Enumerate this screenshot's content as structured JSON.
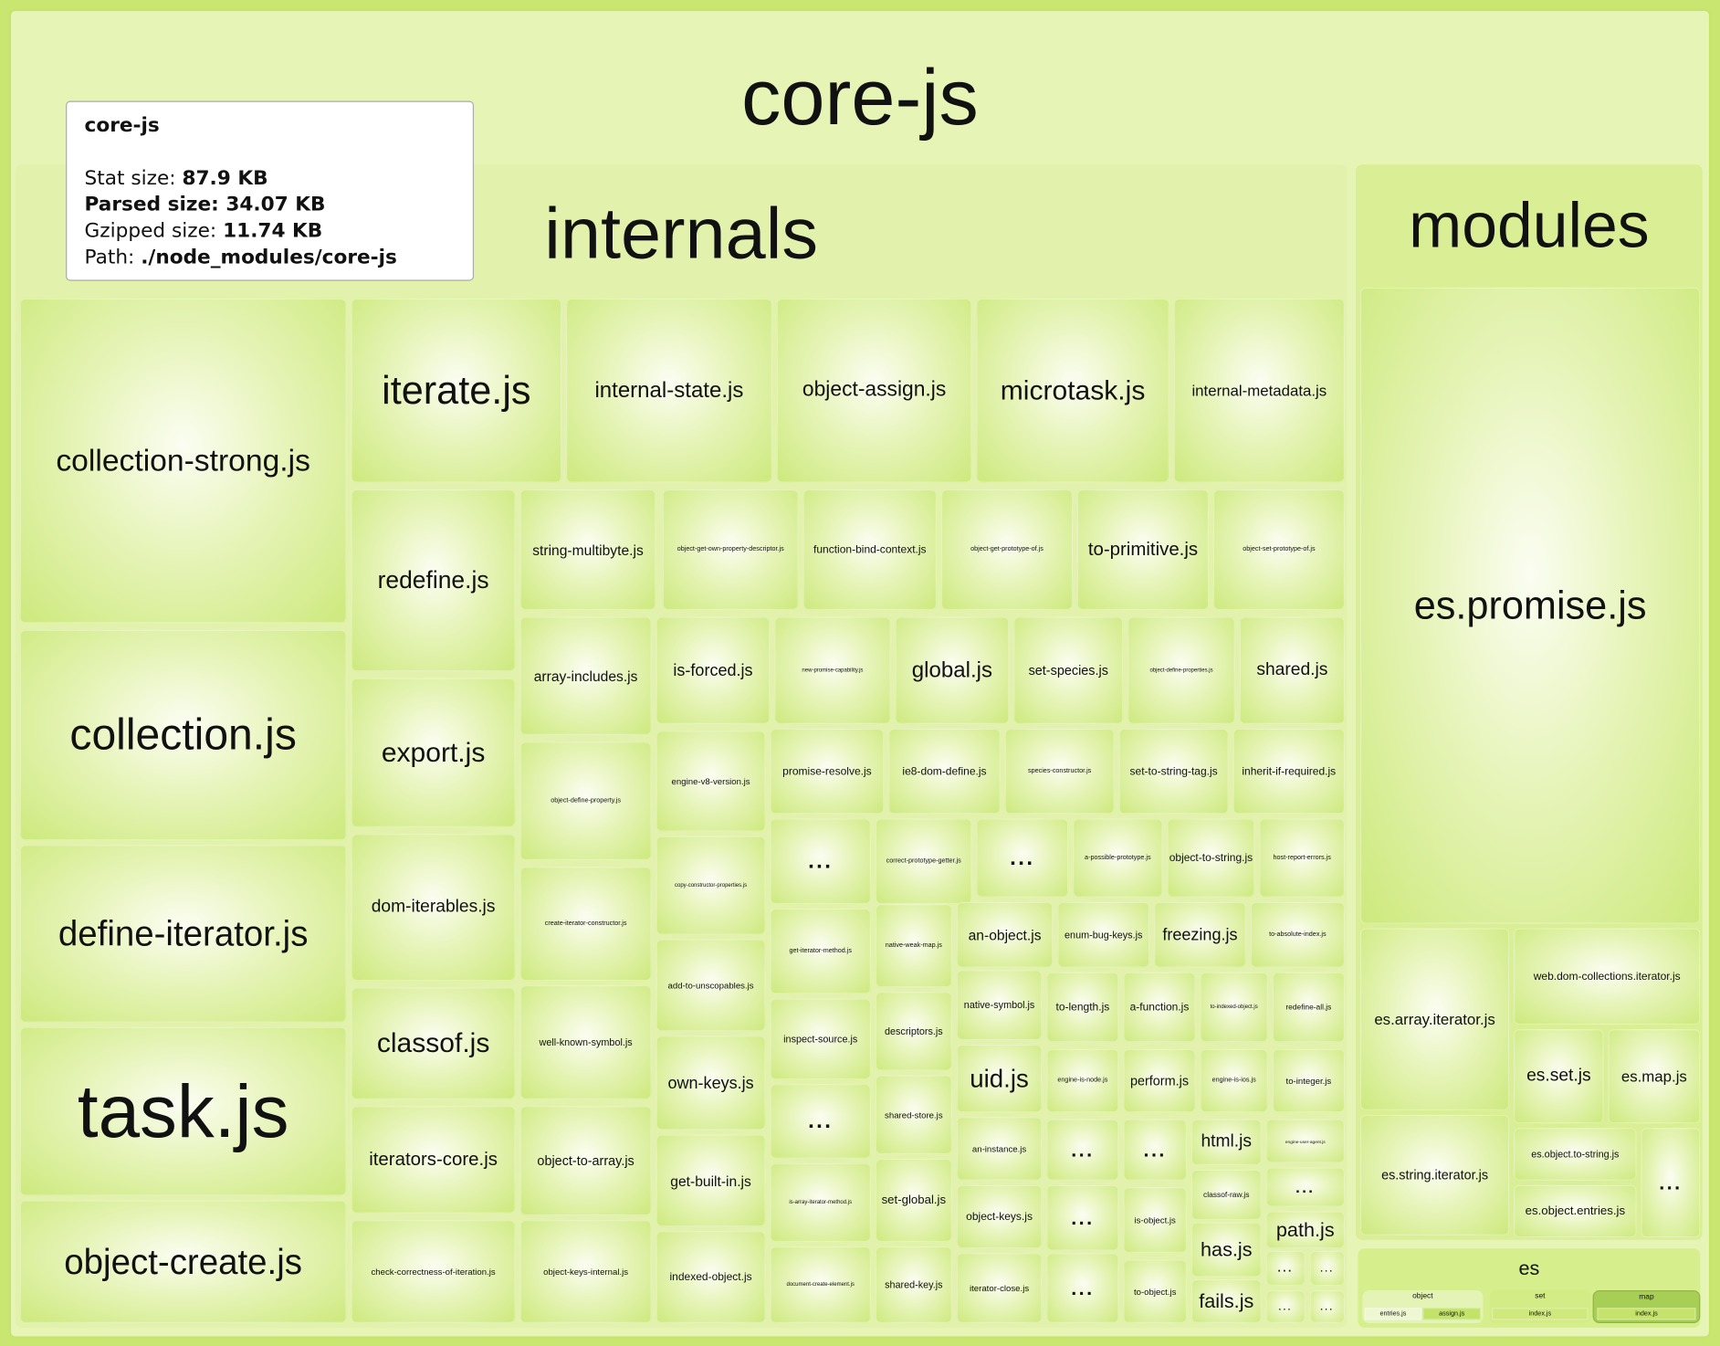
{
  "root": {
    "title": "core-js"
  },
  "tooltip": {
    "title": "core-js",
    "stat_label": "Stat size:",
    "stat_value": "87.9 KB",
    "parsed_label": "Parsed size:",
    "parsed_value": "34.07 KB",
    "gzip_label": "Gzipped size:",
    "gzip_value": "11.74 KB",
    "path_label": "Path:",
    "path_value": "./node_modules/core-js"
  },
  "internals": {
    "title": "internals",
    "files": [
      "collection-strong.js",
      "collection.js",
      "define-iterator.js",
      "task.js",
      "object-create.js",
      "iterate.js",
      "internal-state.js",
      "object-assign.js",
      "microtask.js",
      "internal-metadata.js",
      "redefine.js",
      "export.js",
      "dom-iterables.js",
      "classof.js",
      "iterators-core.js",
      "check-correctness-of-iteration.js",
      "string-multibyte.js",
      "array-includes.js",
      "object-define-property.js",
      "create-iterator-constructor.js",
      "well-known-symbol.js",
      "object-to-array.js",
      "object-keys-internal.js",
      "object-get-own-property-descriptor.js",
      "function-bind-context.js",
      "object-get-prototype-of.js",
      "to-primitive.js",
      "object-set-prototype-of.js",
      "is-forced.js",
      "new-promise-capability.js",
      "global.js",
      "set-species.js",
      "object-define-properties.js",
      "shared.js",
      "engine-v8-version.js",
      "promise-resolve.js",
      "ie8-dom-define.js",
      "species-constructor.js",
      "set-to-string-tag.js",
      "inherit-if-required.js",
      "copy-constructor-properties.js",
      "add-to-unscopables.js",
      "own-keys.js",
      "get-built-in.js",
      "indexed-object.js",
      "...",
      "correct-prototype-getter.js",
      "...",
      "a-possible-prototype.js",
      "object-to-string.js",
      "host-report-errors.js",
      "get-iterator-method.js",
      "inspect-source.js",
      "...",
      "is-array-iterator-method.js",
      "document-create-element.js",
      "native-weak-map.js",
      "descriptors.js",
      "shared-store.js",
      "set-global.js",
      "shared-key.js",
      "an-object.js",
      "enum-bug-keys.js",
      "freezing.js",
      "to-absolute-index.js",
      "native-symbol.js",
      "to-length.js",
      "a-function.js",
      "to-indexed-object.js",
      "redefine-all.js",
      "uid.js",
      "engine-is-node.js",
      "perform.js",
      "engine-is-ios.js",
      "to-integer.js",
      "an-instance.js",
      "...",
      "...",
      "html.js",
      "engine-user-agent.js",
      "object-keys.js",
      "...",
      "is-object.js",
      "classof-raw.js",
      "...",
      "path.js",
      "has.js",
      "fails.js",
      "iterator-close.js",
      "...",
      "to-object.js",
      "...",
      "...",
      "...",
      "..."
    ]
  },
  "modules": {
    "title": "modules",
    "files": [
      "es.promise.js",
      "es.array.iterator.js",
      "web.dom-collections.iterator.js",
      "es.set.js",
      "es.map.js",
      "es.string.iterator.js",
      "es.object.to-string.js",
      "es.object.entries.js",
      "..."
    ],
    "es": {
      "title": "es",
      "object": {
        "title": "object",
        "files": [
          "entries.js",
          "assign.js"
        ]
      },
      "set": {
        "title": "set",
        "files": [
          "index.js"
        ]
      },
      "map": {
        "title": "map",
        "files": [
          "index.js"
        ]
      }
    }
  },
  "colors": {
    "background": "#c9e770",
    "group": "#e2f2ad",
    "tile_edge": "#cde97c",
    "map_group": "#a8cf55"
  }
}
